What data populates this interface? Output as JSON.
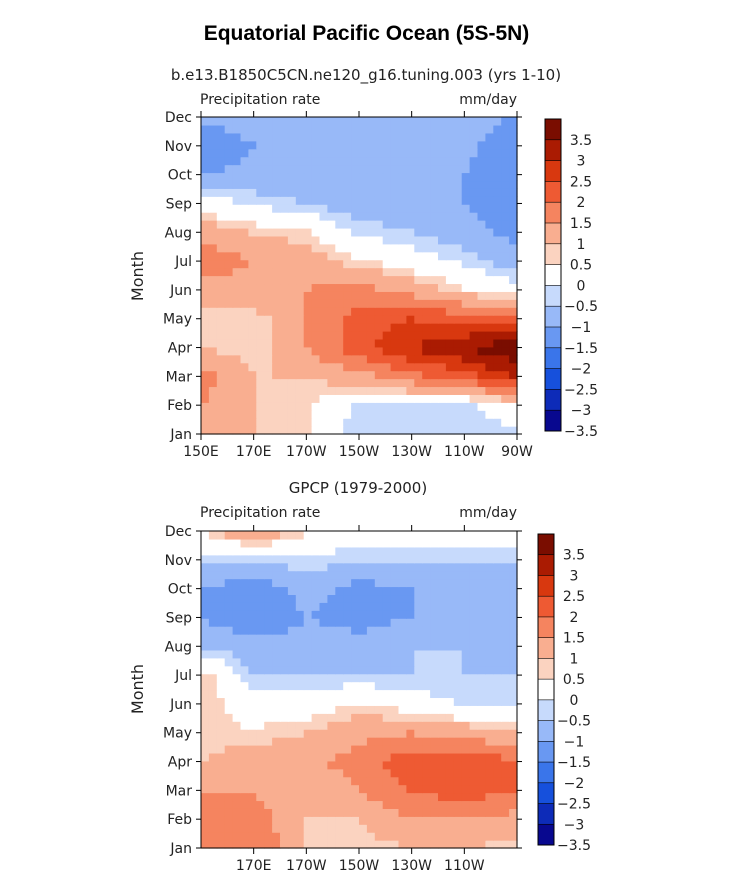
{
  "figure_title": "Equatorial Pacific Ocean (5S-5N)",
  "colors": {
    "levels": [
      "#08088f",
      "#0d2bb8",
      "#1650dc",
      "#3a75ea",
      "#6998f2",
      "#98b9f8",
      "#c7dafc",
      "#ffffff",
      "#fbd3c0",
      "#f9ae90",
      "#f5845f",
      "#ee5a33",
      "#d8380f",
      "#aa1b02",
      "#7a0d00"
    ]
  },
  "chart_data": [
    {
      "type": "heatmap",
      "subtitle": "b.e13.B1850C5CN.ne120_g16.tuning.003 (yrs 1-10)",
      "left_label": "Precipitation rate",
      "right_label": "mm/day",
      "ylabel": "Month",
      "y_ticks": [
        "Jan",
        "Feb",
        "Mar",
        "Apr",
        "May",
        "Jun",
        "Jul",
        "Aug",
        "Sep",
        "Oct",
        "Nov",
        "Dec"
      ],
      "x_ticks": [
        "150E",
        "170E",
        "170W",
        "150W",
        "130W",
        "110W",
        "90W"
      ],
      "x_tick_lon": [
        150,
        170,
        190,
        210,
        230,
        250,
        270
      ],
      "xlim": [
        150,
        270
      ],
      "colorbar_levels": [
        "3.5",
        "3",
        "2.5",
        "2",
        "1.5",
        "1",
        "0.5",
        "0",
        "-0.5",
        "-1",
        "-1.5",
        "-2",
        "-2.5",
        "-3",
        "-3.5"
      ],
      "anomaly_mm_day_approx": [
        [
          1.0,
          0.5,
          0.3,
          -0.5,
          -0.5,
          -0.5,
          -0.3
        ],
        [
          1.0,
          0.5,
          0.3,
          -0.3,
          -0.3,
          -0.3,
          0.0
        ],
        [
          1.2,
          0.5,
          0.5,
          0.8,
          1.3,
          1.8,
          2.5
        ],
        [
          0.5,
          0.3,
          1.0,
          1.8,
          2.5,
          3.0,
          3.5
        ],
        [
          0.3,
          0.3,
          1.0,
          1.8,
          2.0,
          1.8,
          1.5
        ],
        [
          0.8,
          0.8,
          1.0,
          1.2,
          0.8,
          0.3,
          0.0
        ],
        [
          1.3,
          1.0,
          0.8,
          0.3,
          0.0,
          -0.3,
          -0.8
        ],
        [
          0.8,
          0.5,
          0.3,
          -0.3,
          -0.5,
          -0.8,
          -1.2
        ],
        [
          0.0,
          -0.3,
          -0.5,
          -0.8,
          -0.8,
          -1.0,
          -1.3
        ],
        [
          -1.0,
          -0.8,
          -0.8,
          -0.8,
          -0.8,
          -1.0,
          -1.5
        ],
        [
          -1.5,
          -1.0,
          -0.8,
          -0.8,
          -0.8,
          -0.8,
          -1.5
        ],
        [
          -0.8,
          -0.8,
          -0.8,
          -0.8,
          -0.8,
          -0.8,
          -1.0
        ]
      ]
    },
    {
      "type": "heatmap",
      "subtitle": "GPCP (1979-2000)",
      "left_label": "Precipitation rate",
      "right_label": "mm/day",
      "ylabel": "Month",
      "y_ticks": [
        "Jan",
        "Feb",
        "Mar",
        "Apr",
        "May",
        "Jun",
        "Jul",
        "Aug",
        "Sep",
        "Oct",
        "Nov",
        "Dec"
      ],
      "x_ticks": [
        "170E",
        "170W",
        "150W",
        "130W",
        "110W"
      ],
      "x_tick_lon": [
        170,
        190,
        210,
        230,
        250
      ],
      "xlim": [
        150,
        270
      ],
      "colorbar_levels": [
        "3.5",
        "3",
        "2.5",
        "2",
        "1.5",
        "1",
        "0.5",
        "0",
        "-0.5",
        "-1",
        "-1.5",
        "-2",
        "-2.5",
        "-3",
        "-3.5"
      ],
      "anomaly_mm_day_approx": [
        [
          1.3,
          1.5,
          0.5,
          0.3,
          0.5,
          0.5,
          0.3
        ],
        [
          1.3,
          1.3,
          0.5,
          0.5,
          1.0,
          1.0,
          0.8
        ],
        [
          1.0,
          1.0,
          0.5,
          1.0,
          1.5,
          1.8,
          1.5
        ],
        [
          0.5,
          0.8,
          0.8,
          1.3,
          1.8,
          2.0,
          1.5
        ],
        [
          0.3,
          0.3,
          0.5,
          0.8,
          1.0,
          0.8,
          0.5
        ],
        [
          0.5,
          0.0,
          0.0,
          0.3,
          0.0,
          -0.3,
          -0.3
        ],
        [
          0.5,
          -0.5,
          -0.5,
          -0.5,
          -0.5,
          -0.5,
          -0.5
        ],
        [
          -0.5,
          -0.8,
          -0.8,
          -0.8,
          -0.5,
          -0.5,
          -0.8
        ],
        [
          -1.0,
          -1.5,
          -1.0,
          -1.2,
          -1.0,
          -0.5,
          -1.0
        ],
        [
          -1.0,
          -1.3,
          -0.8,
          -1.2,
          -1.0,
          -0.5,
          -1.0
        ],
        [
          -0.5,
          -0.5,
          -0.3,
          -0.5,
          -0.5,
          -0.5,
          -0.5
        ],
        [
          0.3,
          1.0,
          0.3,
          0.0,
          0.0,
          0.0,
          0.0
        ]
      ]
    }
  ]
}
